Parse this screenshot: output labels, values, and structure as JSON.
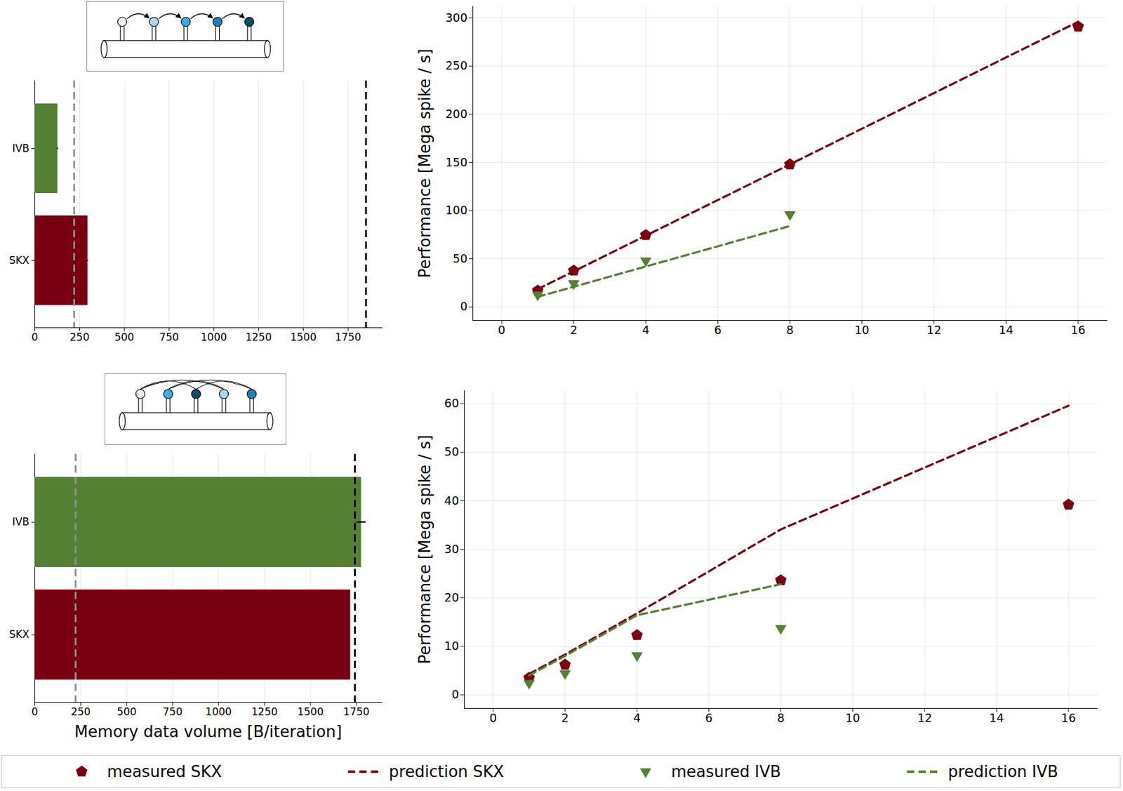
{
  "chart_data": [
    {
      "type": "bar",
      "orientation": "horizontal",
      "categories": [
        "IVB",
        "SKX"
      ],
      "values": [
        128,
        296
      ],
      "errors": [
        4,
        4
      ],
      "colors": [
        "#548033",
        "#780010"
      ],
      "reference_lines": [
        {
          "value": 220,
          "color": "#909090",
          "line_style": "dashed"
        },
        {
          "value": 1850,
          "color": "#000000",
          "line_style": "dashed"
        }
      ],
      "xlim": [
        0,
        1940
      ],
      "xticks": [
        0,
        250,
        500,
        750,
        1000,
        1250,
        1500,
        1750
      ],
      "grid": true
    },
    {
      "type": "line",
      "ylabel": "Performance [Mega spike / s]",
      "x": [
        1,
        2,
        4,
        8,
        16
      ],
      "series": [
        {
          "name": "measured SKX",
          "type": "scatter",
          "color": "#780010",
          "marker": "pentagon",
          "values": [
            17,
            37.7,
            74.6,
            148,
            291
          ]
        },
        {
          "name": "prediction SKX",
          "type": "line",
          "color": "#780010",
          "line_style": "dashed",
          "values": [
            18.5,
            37,
            74,
            148,
            296
          ]
        },
        {
          "name": "measured IVB",
          "type": "scatter",
          "color": "#548033",
          "marker": "triangle_down",
          "values": [
            12.6,
            24.4,
            48,
            96,
            null
          ]
        },
        {
          "name": "prediction IVB",
          "type": "line",
          "color": "#548033",
          "line_style": "dashed",
          "values": [
            10.5,
            21,
            42,
            84,
            null
          ]
        }
      ],
      "xlim": [
        -0.8,
        16.8
      ],
      "xticks": [
        0,
        2,
        4,
        6,
        8,
        10,
        12,
        14,
        16
      ],
      "ylim": [
        -14,
        312
      ],
      "yticks": [
        0,
        50,
        100,
        150,
        200,
        250,
        300
      ],
      "grid": true,
      "legend": "bottom"
    },
    {
      "type": "bar",
      "orientation": "horizontal",
      "xlabel": "Memory data volume [B/iteration]",
      "categories": [
        "IVB",
        "SKX"
      ],
      "values": [
        1777,
        1718
      ],
      "errors": [
        25,
        0
      ],
      "colors": [
        "#548033",
        "#780010"
      ],
      "reference_lines": [
        {
          "value": 222,
          "color": "#909090",
          "line_style": "dashed"
        },
        {
          "value": 1742,
          "color": "#000000",
          "line_style": "dashed"
        }
      ],
      "xlim": [
        0,
        1890
      ],
      "xticks": [
        0,
        250,
        500,
        750,
        1000,
        1250,
        1500,
        1750
      ],
      "grid": true
    },
    {
      "type": "line",
      "ylabel": "Performance [Mega spike / s]",
      "x": [
        1,
        2,
        4,
        8,
        16
      ],
      "series": [
        {
          "name": "measured SKX",
          "type": "scatter",
          "color": "#780010",
          "marker": "pentagon",
          "values": [
            3.5,
            6.2,
            12.3,
            23.6,
            39.2
          ]
        },
        {
          "name": "prediction SKX",
          "type": "line",
          "color": "#780010",
          "line_style": "dashed",
          "values": [
            4.3,
            8.3,
            16.8,
            34.1,
            59.6
          ]
        },
        {
          "name": "measured IVB",
          "type": "scatter",
          "color": "#548033",
          "marker": "triangle_down",
          "values": [
            2.4,
            4.4,
            8.1,
            13.7,
            null
          ]
        },
        {
          "name": "prediction IVB",
          "type": "line",
          "color": "#548033",
          "line_style": "dashed",
          "values": [
            4.0,
            8.0,
            16.4,
            22.8,
            null
          ]
        }
      ],
      "xlim": [
        -0.8,
        16.8
      ],
      "xticks": [
        0,
        2,
        4,
        6,
        8,
        10,
        12,
        14,
        16
      ],
      "ylim": [
        -2.8,
        62.7
      ],
      "yticks": [
        0,
        10,
        20,
        30,
        40,
        50,
        60
      ],
      "grid": true,
      "legend": "bottom"
    }
  ]
}
